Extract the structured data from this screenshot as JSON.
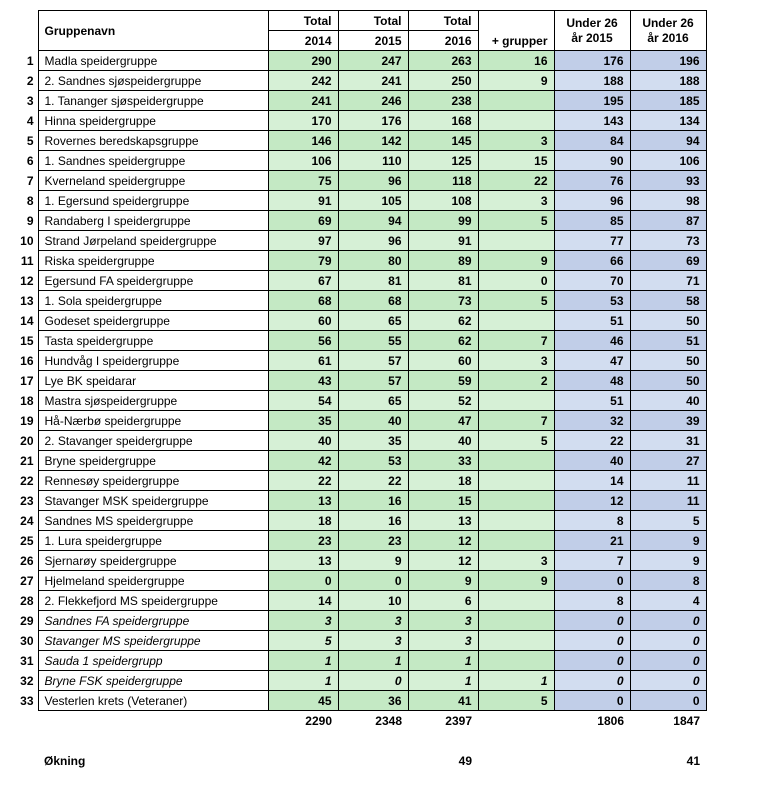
{
  "header": {
    "group_label": "Gruppenavn",
    "total_label": "Total",
    "year_2014": "2014",
    "year_2015": "2015",
    "year_2016": "2016",
    "plus_label": "+ grupper",
    "under26_2015": "Under 26 år 2015",
    "under26_2016": "Under 26 år 2016"
  },
  "rows": [
    {
      "n": "1",
      "name": "Madla speidergruppe",
      "t14": "290",
      "t15": "247",
      "t16": "263",
      "plus": "16",
      "u15": "176",
      "u16": "196",
      "italic": false
    },
    {
      "n": "2",
      "name": "2. Sandnes sjøspeidergruppe",
      "t14": "242",
      "t15": "241",
      "t16": "250",
      "plus": "9",
      "u15": "188",
      "u16": "188",
      "italic": false
    },
    {
      "n": "3",
      "name": "1. Tananger sjøspeidergruppe",
      "t14": "241",
      "t15": "246",
      "t16": "238",
      "plus": "",
      "u15": "195",
      "u16": "185",
      "italic": false
    },
    {
      "n": "4",
      "name": "Hinna speidergruppe",
      "t14": "170",
      "t15": "176",
      "t16": "168",
      "plus": "",
      "u15": "143",
      "u16": "134",
      "italic": false
    },
    {
      "n": "5",
      "name": "Rovernes beredskapsgruppe",
      "t14": "146",
      "t15": "142",
      "t16": "145",
      "plus": "3",
      "u15": "84",
      "u16": "94",
      "italic": false
    },
    {
      "n": "6",
      "name": "1. Sandnes speidergruppe",
      "t14": "106",
      "t15": "110",
      "t16": "125",
      "plus": "15",
      "u15": "90",
      "u16": "106",
      "italic": false
    },
    {
      "n": "7",
      "name": "Kverneland speidergruppe",
      "t14": "75",
      "t15": "96",
      "t16": "118",
      "plus": "22",
      "u15": "76",
      "u16": "93",
      "italic": false
    },
    {
      "n": "8",
      "name": "1. Egersund speidergruppe",
      "t14": "91",
      "t15": "105",
      "t16": "108",
      "plus": "3",
      "u15": "96",
      "u16": "98",
      "italic": false
    },
    {
      "n": "9",
      "name": "Randaberg I speidergruppe",
      "t14": "69",
      "t15": "94",
      "t16": "99",
      "plus": "5",
      "u15": "85",
      "u16": "87",
      "italic": false
    },
    {
      "n": "10",
      "name": "Strand Jørpeland speidergruppe",
      "t14": "97",
      "t15": "96",
      "t16": "91",
      "plus": "",
      "u15": "77",
      "u16": "73",
      "italic": false
    },
    {
      "n": "11",
      "name": "Riska speidergruppe",
      "t14": "79",
      "t15": "80",
      "t16": "89",
      "plus": "9",
      "u15": "66",
      "u16": "69",
      "italic": false
    },
    {
      "n": "12",
      "name": "Egersund FA speidergruppe",
      "t14": "67",
      "t15": "81",
      "t16": "81",
      "plus": "0",
      "u15": "70",
      "u16": "71",
      "italic": false
    },
    {
      "n": "13",
      "name": "1. Sola speidergruppe",
      "t14": "68",
      "t15": "68",
      "t16": "73",
      "plus": "5",
      "u15": "53",
      "u16": "58",
      "italic": false
    },
    {
      "n": "14",
      "name": "Godeset speidergruppe",
      "t14": "60",
      "t15": "65",
      "t16": "62",
      "plus": "",
      "u15": "51",
      "u16": "50",
      "italic": false
    },
    {
      "n": "15",
      "name": "Tasta speidergruppe",
      "t14": "56",
      "t15": "55",
      "t16": "62",
      "plus": "7",
      "u15": "46",
      "u16": "51",
      "italic": false
    },
    {
      "n": "16",
      "name": "Hundvåg I speidergruppe",
      "t14": "61",
      "t15": "57",
      "t16": "60",
      "plus": "3",
      "u15": "47",
      "u16": "50",
      "italic": false
    },
    {
      "n": "17",
      "name": "Lye BK speidarar",
      "t14": "43",
      "t15": "57",
      "t16": "59",
      "plus": "2",
      "u15": "48",
      "u16": "50",
      "italic": false
    },
    {
      "n": "18",
      "name": "Mastra sjøspeidergruppe",
      "t14": "54",
      "t15": "65",
      "t16": "52",
      "plus": "",
      "u15": "51",
      "u16": "40",
      "italic": false
    },
    {
      "n": "19",
      "name": "Hå-Nærbø speidergruppe",
      "t14": "35",
      "t15": "40",
      "t16": "47",
      "plus": "7",
      "u15": "32",
      "u16": "39",
      "italic": false
    },
    {
      "n": "20",
      "name": "2. Stavanger speidergruppe",
      "t14": "40",
      "t15": "35",
      "t16": "40",
      "plus": "5",
      "u15": "22",
      "u16": "31",
      "italic": false
    },
    {
      "n": "21",
      "name": "Bryne speidergruppe",
      "t14": "42",
      "t15": "53",
      "t16": "33",
      "plus": "",
      "u15": "40",
      "u16": "27",
      "italic": false
    },
    {
      "n": "22",
      "name": "Rennesøy speidergruppe",
      "t14": "22",
      "t15": "22",
      "t16": "18",
      "plus": "",
      "u15": "14",
      "u16": "11",
      "italic": false
    },
    {
      "n": "23",
      "name": "Stavanger MSK speidergruppe",
      "t14": "13",
      "t15": "16",
      "t16": "15",
      "plus": "",
      "u15": "12",
      "u16": "11",
      "italic": false
    },
    {
      "n": "24",
      "name": "Sandnes MS speidergruppe",
      "t14": "18",
      "t15": "16",
      "t16": "13",
      "plus": "",
      "u15": "8",
      "u16": "5",
      "italic": false
    },
    {
      "n": "25",
      "name": "1. Lura speidergruppe",
      "t14": "23",
      "t15": "23",
      "t16": "12",
      "plus": "",
      "u15": "21",
      "u16": "9",
      "italic": false
    },
    {
      "n": "26",
      "name": "Sjernarøy speidergruppe",
      "t14": "13",
      "t15": "9",
      "t16": "12",
      "plus": "3",
      "u15": "7",
      "u16": "9",
      "italic": false
    },
    {
      "n": "27",
      "name": "Hjelmeland speidergruppe",
      "t14": "0",
      "t15": "0",
      "t16": "9",
      "plus": "9",
      "u15": "0",
      "u16": "8",
      "italic": false
    },
    {
      "n": "28",
      "name": "2. Flekkefjord MS speidergruppe",
      "t14": "14",
      "t15": "10",
      "t16": "6",
      "plus": "",
      "u15": "8",
      "u16": "4",
      "italic": false
    },
    {
      "n": "29",
      "name": "Sandnes FA speidergruppe",
      "t14": "3",
      "t15": "3",
      "t16": "3",
      "plus": "",
      "u15": "0",
      "u16": "0",
      "italic": true
    },
    {
      "n": "30",
      "name": "Stavanger MS speidergruppe",
      "t14": "5",
      "t15": "3",
      "t16": "3",
      "plus": "",
      "u15": "0",
      "u16": "0",
      "italic": true
    },
    {
      "n": "31",
      "name": "Sauda 1 speidergrupp",
      "t14": "1",
      "t15": "1",
      "t16": "1",
      "plus": "",
      "u15": "0",
      "u16": "0",
      "italic": true
    },
    {
      "n": "32",
      "name": "Bryne FSK speidergruppe",
      "t14": "1",
      "t15": "0",
      "t16": "1",
      "plus": "1",
      "u15": "0",
      "u16": "0",
      "italic": true
    },
    {
      "n": "33",
      "name": "Vesterlen krets (Veteraner)",
      "t14": "45",
      "t15": "36",
      "t16": "41",
      "plus": "5",
      "u15": "0",
      "u16": "0",
      "italic": false
    }
  ],
  "totals": {
    "t14": "2290",
    "t15": "2348",
    "t16": "2397",
    "u15": "1806",
    "u16": "1847"
  },
  "increase": {
    "label": "Økning",
    "t16": "49",
    "u16": "41"
  },
  "colors": {
    "green": "#c4e9c4",
    "green2": "#d6f0d6",
    "blue": "#c1cee8",
    "blue2": "#d2ddf0"
  }
}
